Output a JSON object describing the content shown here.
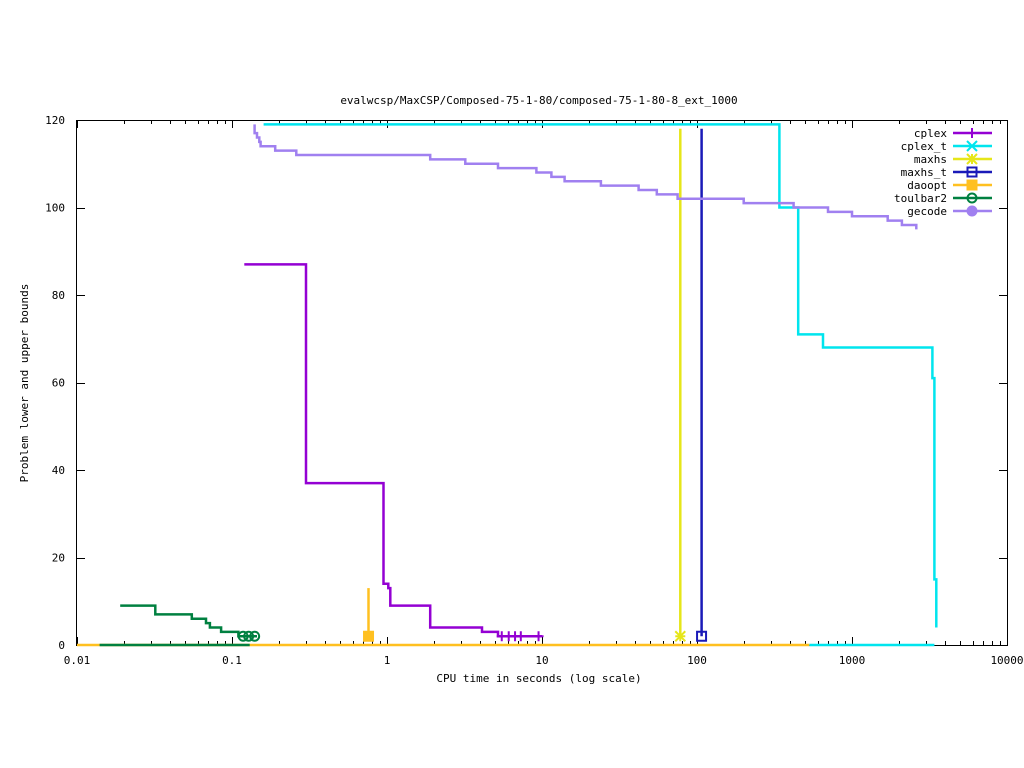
{
  "chart_data": {
    "type": "line",
    "title": "evalwcsp/MaxCSP/Composed-75-1-80/composed-75-1-80-8_ext_1000",
    "xlabel": "CPU time in seconds (log scale)",
    "ylabel": "Problem lower and upper bounds",
    "x_scale": "log",
    "xlim": [
      0.01,
      10000
    ],
    "ylim": [
      0,
      120
    ],
    "x_ticks": [
      0.01,
      0.1,
      1,
      10,
      100,
      1000,
      10000
    ],
    "x_tick_labels": [
      "0.01",
      "0.1",
      "1",
      "10",
      "100",
      "1000",
      "10000"
    ],
    "y_ticks": [
      0,
      20,
      40,
      60,
      80,
      100,
      120
    ],
    "y_tick_labels": [
      "0",
      "20",
      "40",
      "60",
      "80",
      "100",
      "120"
    ],
    "grid": false,
    "legend_position": "top-right",
    "series": [
      {
        "name": "cplex",
        "color": "#9400D3",
        "marker": "plus",
        "lines": [
          [
            [
              0.12,
              87
            ],
            [
              0.3,
              87
            ],
            [
              0.3,
              37
            ],
            [
              0.95,
              37
            ],
            [
              0.95,
              14
            ],
            [
              1.02,
              14
            ],
            [
              1.02,
              13
            ],
            [
              1.05,
              13
            ],
            [
              1.05,
              9
            ],
            [
              1.9,
              9
            ],
            [
              1.9,
              4
            ],
            [
              4.1,
              4
            ],
            [
              4.1,
              3
            ],
            [
              5.2,
              3
            ],
            [
              5.2,
              2
            ],
            [
              10,
              2
            ]
          ]
        ],
        "points": [
          [
            5.5,
            2
          ],
          [
            6.1,
            2
          ],
          [
            6.7,
            2
          ],
          [
            7.3,
            2
          ],
          [
            9.5,
            2
          ]
        ]
      },
      {
        "name": "cplex_t",
        "color": "#00E5EE",
        "marker": "cross",
        "lines": [
          [
            [
              0.16,
              119
            ],
            [
              340,
              119
            ],
            [
              340,
              100
            ],
            [
              450,
              100
            ],
            [
              450,
              71
            ],
            [
              650,
              71
            ],
            [
              650,
              68
            ],
            [
              3300,
              68
            ],
            [
              3300,
              61
            ],
            [
              3400,
              61
            ],
            [
              3400,
              15
            ],
            [
              3500,
              15
            ],
            [
              3500,
              4
            ]
          ],
          [
            [
              530,
              0
            ],
            [
              3400,
              0
            ]
          ]
        ],
        "points": []
      },
      {
        "name": "maxhs",
        "color": "#E6E619",
        "marker": "star",
        "lines": [
          [
            [
              78,
              118
            ],
            [
              78,
              2
            ]
          ]
        ],
        "points": [
          [
            78,
            2
          ]
        ]
      },
      {
        "name": "maxhs_t",
        "color": "#1A1AB8",
        "marker": "square",
        "lines": [
          [
            [
              107,
              118
            ],
            [
              107,
              2
            ]
          ]
        ],
        "points": [
          [
            107,
            2
          ]
        ]
      },
      {
        "name": "daoopt",
        "color": "#FFC020",
        "marker": "filled-square",
        "lines": [
          [
            [
              0.76,
              13
            ],
            [
              0.76,
              2
            ]
          ],
          [
            [
              0.01,
              0
            ],
            [
              530,
              0
            ]
          ]
        ],
        "points": [
          [
            0.76,
            2
          ]
        ]
      },
      {
        "name": "toulbar2",
        "color": "#008040",
        "marker": "circle",
        "lines": [
          [
            [
              0.019,
              9
            ],
            [
              0.032,
              9
            ],
            [
              0.032,
              7
            ],
            [
              0.055,
              7
            ],
            [
              0.055,
              6
            ],
            [
              0.068,
              6
            ],
            [
              0.068,
              5
            ],
            [
              0.072,
              5
            ],
            [
              0.072,
              4
            ],
            [
              0.085,
              4
            ],
            [
              0.085,
              3
            ],
            [
              0.11,
              3
            ],
            [
              0.11,
              2
            ],
            [
              0.145,
              2
            ]
          ],
          [
            [
              0.014,
              0
            ],
            [
              0.13,
              0
            ]
          ]
        ],
        "points": [
          [
            0.118,
            2
          ],
          [
            0.128,
            2
          ],
          [
            0.14,
            2
          ]
        ]
      },
      {
        "name": "gecode",
        "color": "#A080F0",
        "marker": "filled-circle",
        "lines": [
          [
            [
              0.14,
              119
            ],
            [
              0.14,
              117
            ],
            [
              0.145,
              117
            ],
            [
              0.145,
              116
            ],
            [
              0.15,
              116
            ],
            [
              0.15,
              115
            ],
            [
              0.153,
              115
            ],
            [
              0.153,
              114
            ],
            [
              0.19,
              114
            ],
            [
              0.19,
              113
            ],
            [
              0.26,
              113
            ],
            [
              0.26,
              112
            ],
            [
              1.9,
              112
            ],
            [
              1.9,
              111
            ],
            [
              3.2,
              111
            ],
            [
              3.2,
              110
            ],
            [
              5.2,
              110
            ],
            [
              5.2,
              109
            ],
            [
              9.2,
              109
            ],
            [
              9.2,
              108
            ],
            [
              11.5,
              108
            ],
            [
              11.5,
              107
            ],
            [
              14,
              107
            ],
            [
              14,
              106
            ],
            [
              24,
              106
            ],
            [
              24,
              105
            ],
            [
              42,
              105
            ],
            [
              42,
              104
            ],
            [
              55,
              104
            ],
            [
              55,
              103
            ],
            [
              75,
              103
            ],
            [
              75,
              102
            ],
            [
              200,
              102
            ],
            [
              200,
              101
            ],
            [
              420,
              101
            ],
            [
              420,
              100
            ],
            [
              700,
              100
            ],
            [
              700,
              99
            ],
            [
              1000,
              99
            ],
            [
              1000,
              98
            ],
            [
              1700,
              98
            ],
            [
              1700,
              97
            ],
            [
              2100,
              97
            ],
            [
              2100,
              96
            ],
            [
              2600,
              96
            ],
            [
              2600,
              95
            ]
          ]
        ],
        "points": []
      }
    ]
  }
}
